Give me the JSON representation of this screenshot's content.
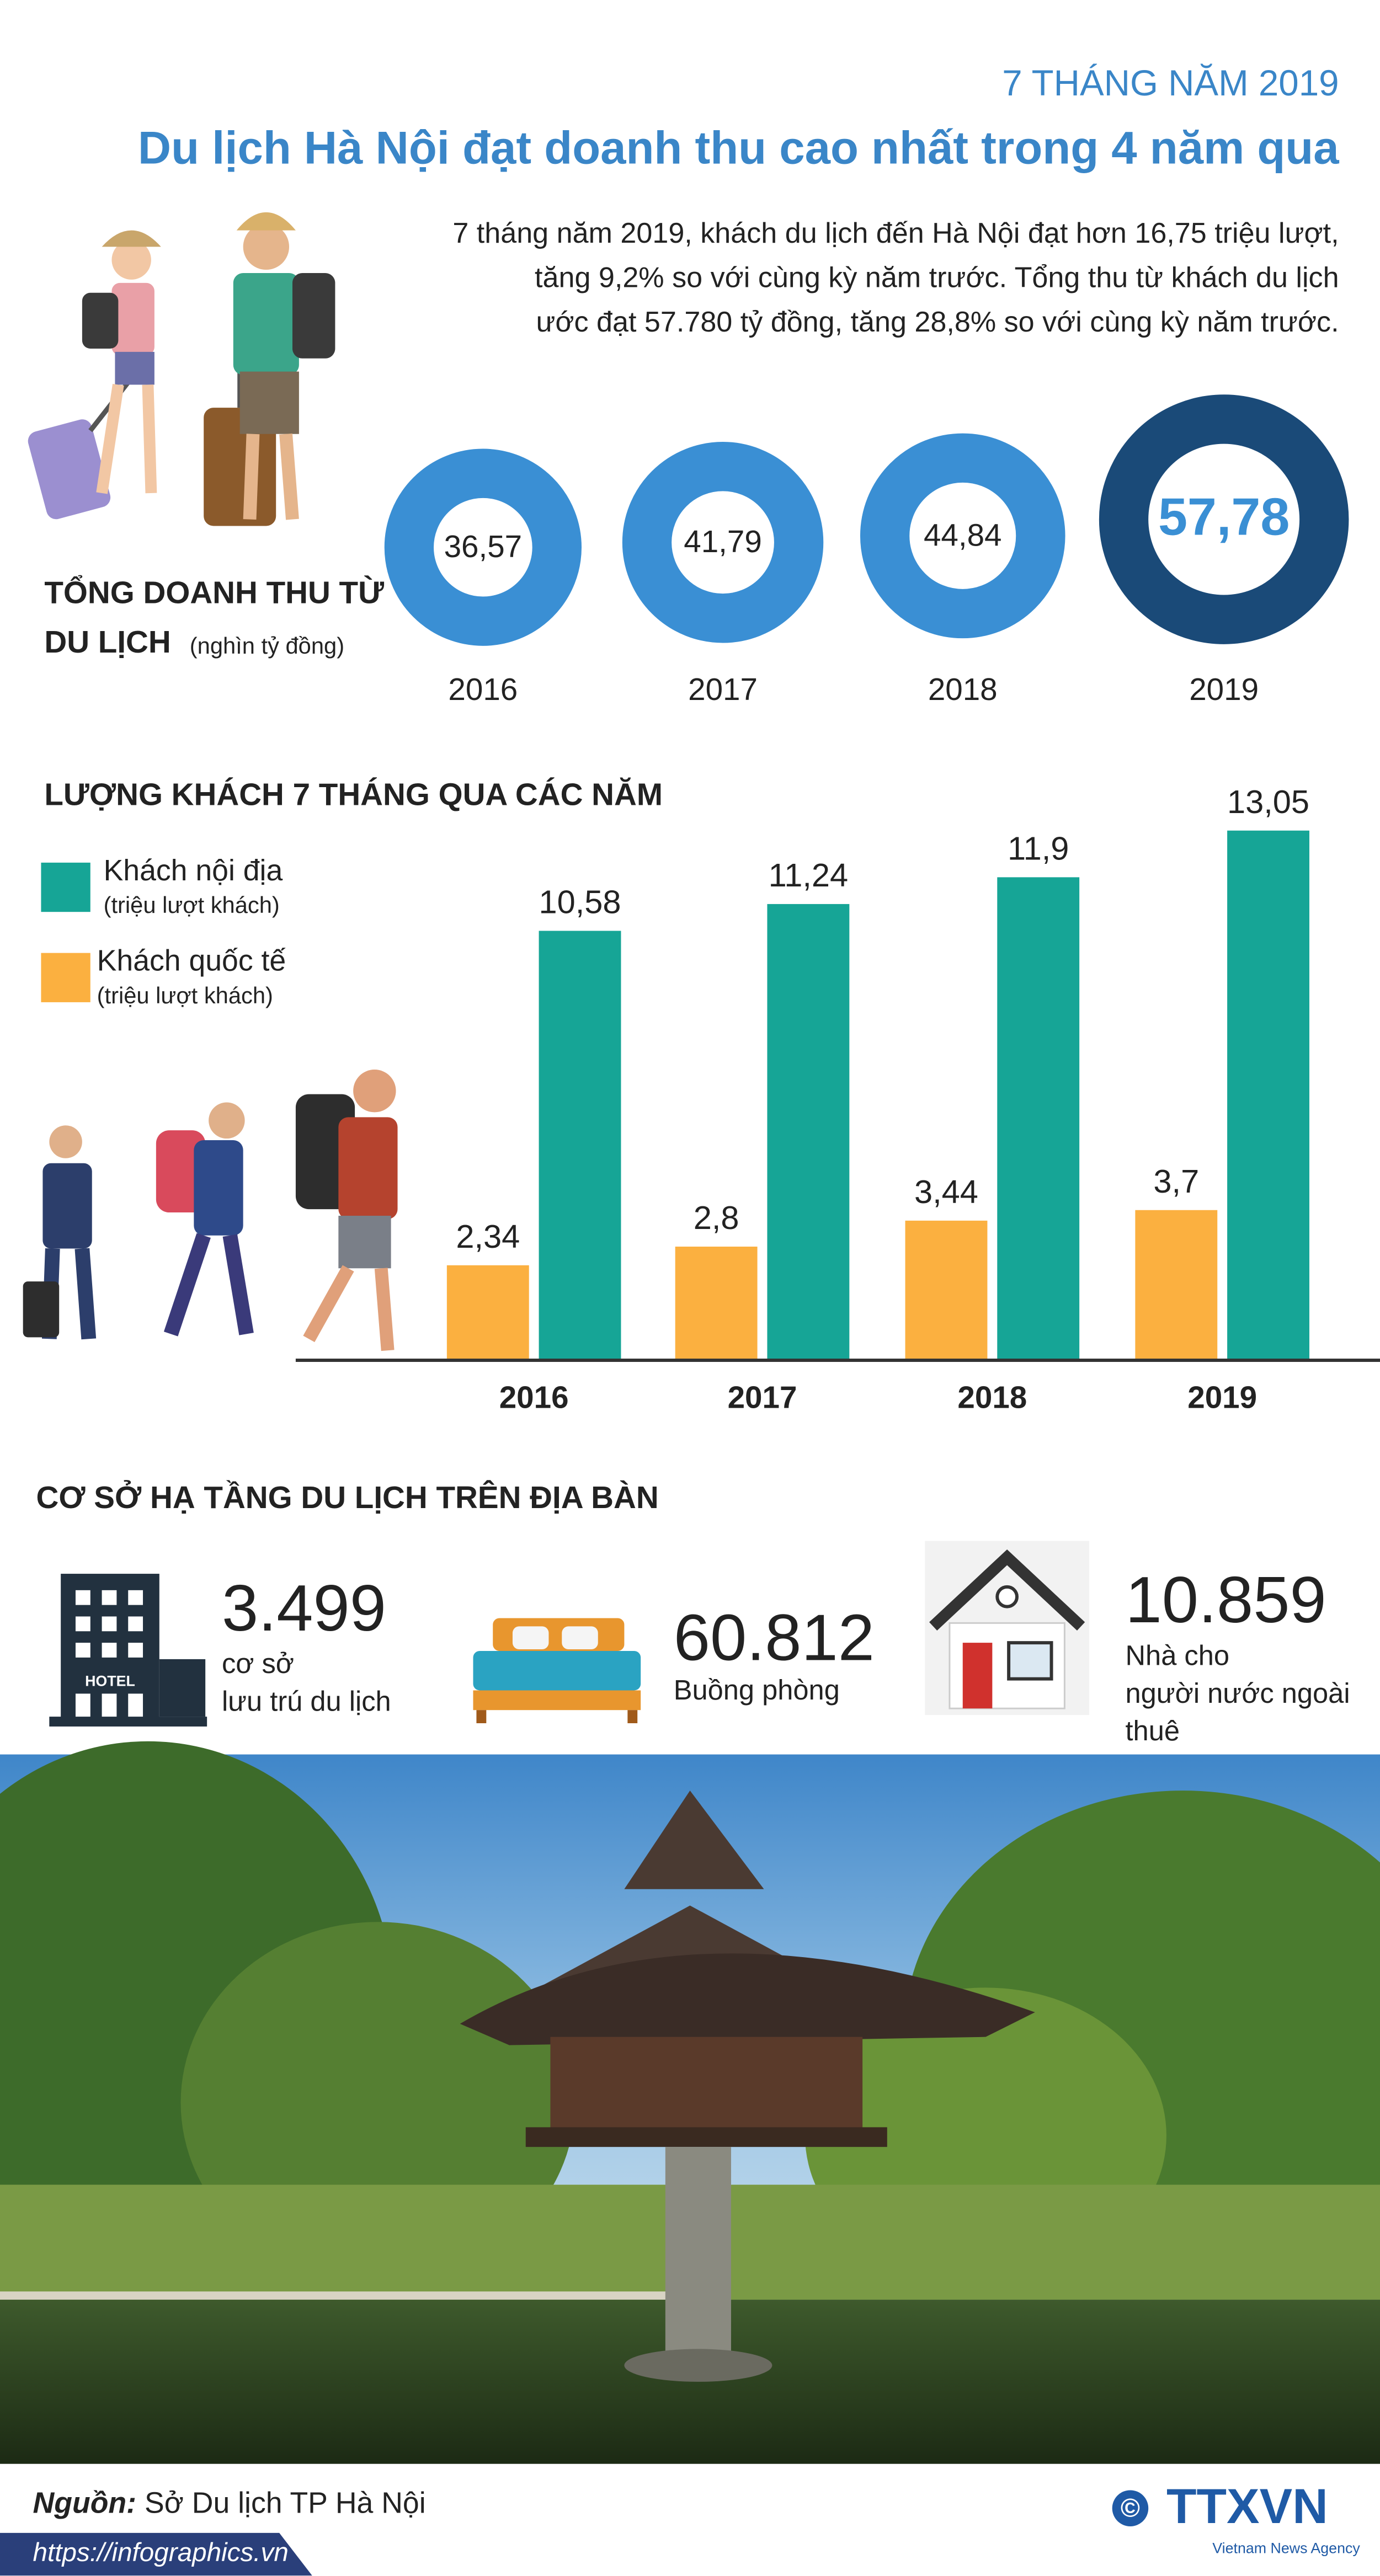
{
  "header": {
    "subtitle": "7 THÁNG NĂM 2019",
    "title": "Du lịch Hà Nội đạt doanh thu cao nhất trong 4 năm qua",
    "summary": [
      "7 tháng năm 2019, khách du lịch đến Hà Nội đạt hơn 16,75  triệu lượt,",
      "tăng 9,2% so với cùng kỳ năm trước. Tổng thu từ khách du lịch",
      "ước đạt 57.780 tỷ đồng, tăng 28,8% so với cùng kỳ năm trước."
    ]
  },
  "chart_data": [
    {
      "type": "donut",
      "title_lines": [
        "TỔNG DOANH THU TỪ",
        "DU LỊCH"
      ],
      "unit": "(nghìn tỷ đồng)",
      "categories": [
        "2016",
        "2017",
        "2018",
        "2019"
      ],
      "values": [
        36.57,
        41.79,
        44.84,
        57.78
      ],
      "value_labels": [
        "36,57",
        "41,79",
        "44,84",
        "57,78"
      ],
      "color": "#3a8fd4",
      "highlight_color": "#1a4a78"
    },
    {
      "type": "bar",
      "title": "LƯỢNG KHÁCH 7 THÁNG QUA CÁC NĂM",
      "categories": [
        "2016",
        "2017",
        "2018",
        "2019"
      ],
      "series": [
        {
          "name": "Khách quốc tế",
          "unit": "(triệu lượt khách)",
          "color": "#fbb040",
          "values": [
            2.34,
            2.8,
            3.44,
            3.7
          ],
          "value_labels": [
            "2,34",
            "2,8",
            "3,44",
            "3,7"
          ]
        },
        {
          "name": "Khách nội địa",
          "unit": "(triệu lượt khách)",
          "color": "#16a596",
          "values": [
            10.58,
            11.24,
            11.9,
            13.05
          ],
          "value_labels": [
            "10,58",
            "11,24",
            "11,9",
            "13,05"
          ]
        }
      ],
      "ylim": [
        0,
        14
      ]
    }
  ],
  "infrastructure": {
    "title": "CƠ SỞ HẠ TẦNG DU LỊCH TRÊN ĐỊA BÀN",
    "items": [
      {
        "value": "3.499",
        "lines": [
          "cơ sở",
          "lưu trú du lịch"
        ],
        "icon_text": "HOTEL"
      },
      {
        "value": "60.812",
        "lines": [
          "Buồng phòng"
        ]
      },
      {
        "value": "10.859",
        "lines": [
          "Nhà cho",
          "người nước ngoài",
          "thuê"
        ]
      }
    ]
  },
  "footer": {
    "source_label": "Nguồn:",
    "source": "Sở Du lịch TP Hà Nội",
    "url": "https://infographics.vn",
    "copyright": "©",
    "logo": "TTXVN",
    "logo_sub": "Vietnam News Agency"
  }
}
